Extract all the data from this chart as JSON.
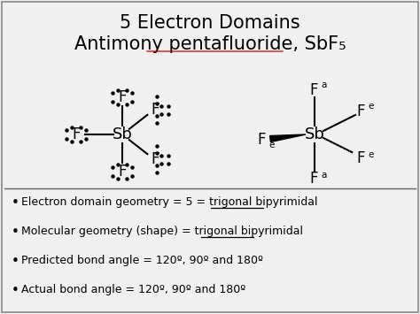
{
  "title_line1": "5 Electron Domains",
  "title_line2_pre": "Antimony ",
  "title_line2_underline": "pentafluoride",
  "title_line2_post": ", SbF",
  "title_subscript": "5",
  "bg_color": "#f0f0f0",
  "border_color": "#888888",
  "bullet_points": [
    "Electron domain geometry = 5 = trigonal bipyrimidal",
    "Molecular geometry (shape) = trigonal bipyrimidal",
    "Predicted bond angle = 120º, 90º and 180º",
    "Actual bond angle = 120º, 90º and 180º"
  ],
  "underline_word": "bipyrimidal"
}
